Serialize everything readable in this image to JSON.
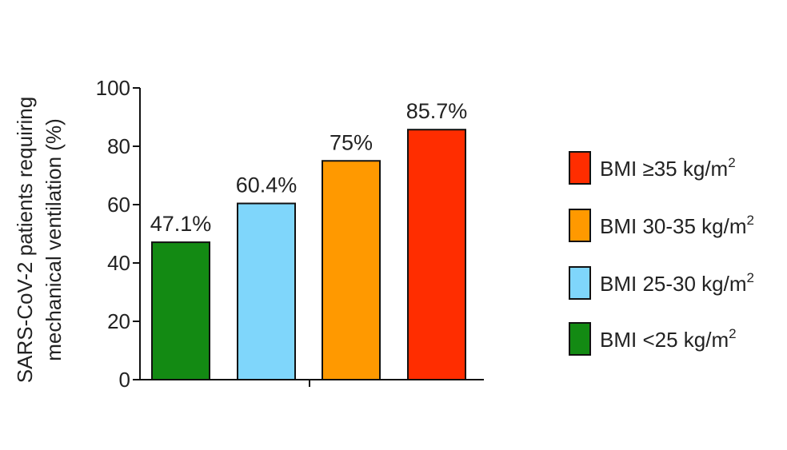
{
  "chart_data": {
    "type": "bar",
    "title": "",
    "xlabel": "",
    "ylabel_lines": [
      "SARS-CoV-2 patients requiring",
      "mechanical ventilation (%)"
    ],
    "ylim": [
      0,
      100
    ],
    "yticks": [
      "0",
      "20",
      "40",
      "60",
      "80",
      "100"
    ],
    "categories": [
      "BMI <25 kg/m2",
      "BMI 25-30 kg/m2",
      "BMI 30-35 kg/m2",
      "BMI ≥35 kg/m2"
    ],
    "values": [
      47.1,
      60.4,
      75,
      85.7
    ],
    "data_labels": [
      "47.1%",
      "60.4%",
      "75%",
      "85.7%"
    ],
    "colors": [
      "#138a13",
      "#7fd6fb",
      "#ff9900",
      "#ff2d00"
    ],
    "legend": {
      "placement": "right",
      "entries": [
        {
          "base": "BMI ≥35 kg/m",
          "sup": "2",
          "color": "#ff2d00"
        },
        {
          "base": "BMI 30-35 kg/m",
          "sup": "2",
          "color": "#ff9900"
        },
        {
          "base": "BMI 25-30 kg/m",
          "sup": "2",
          "color": "#7fd6fb"
        },
        {
          "base": "BMI <25 kg/m",
          "sup": "2",
          "color": "#138a13"
        }
      ]
    },
    "grid": false
  }
}
